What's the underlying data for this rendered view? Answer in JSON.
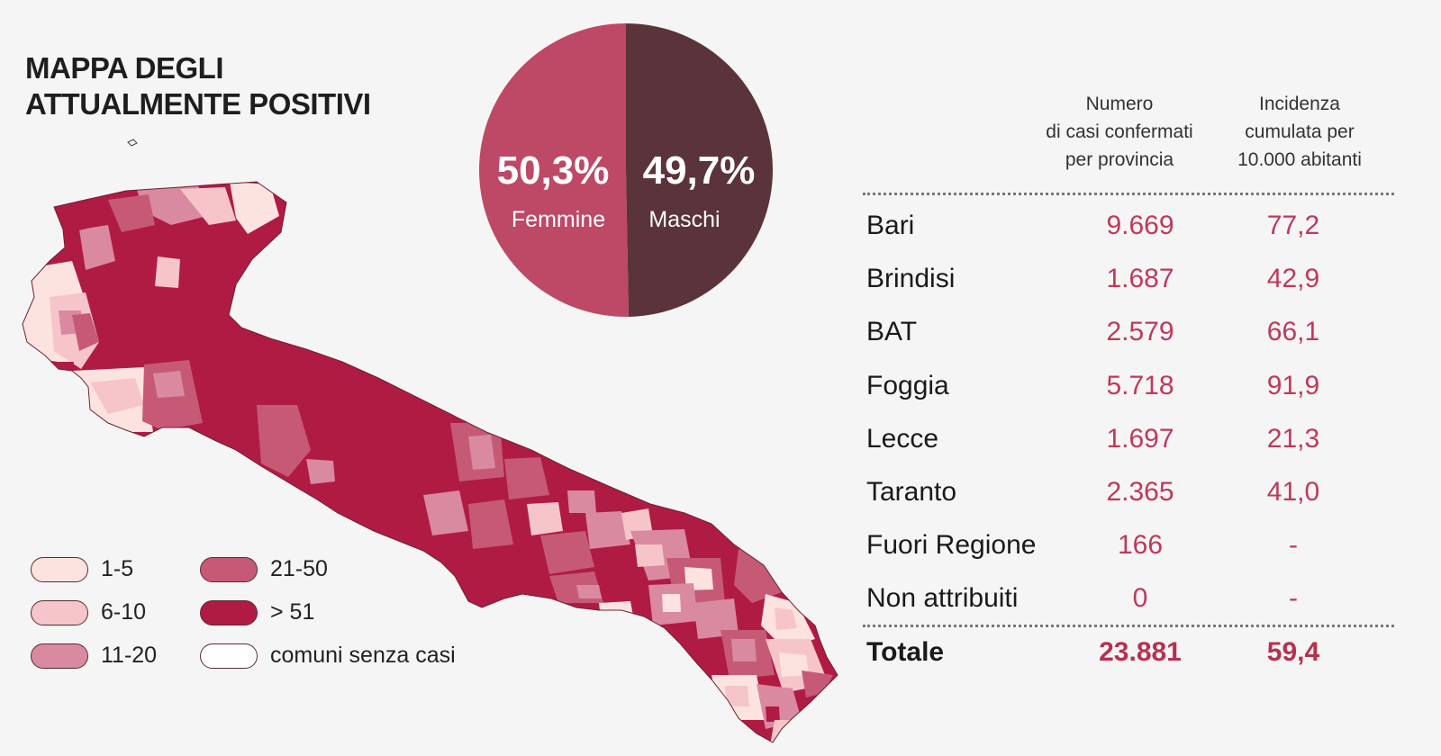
{
  "title": {
    "line1": "MAPPA DEGLI",
    "line2": "ATTUALMENTE POSITIVI"
  },
  "colors": {
    "c1_5": "#fde3df",
    "c6_10": "#f5c5c9",
    "c11_20": "#d98aa0",
    "c21_50": "#c65a76",
    "c51": "#b01b44",
    "none": "#ffffff",
    "female": "#bd4966",
    "male": "#5b333a",
    "value": "#c0395a"
  },
  "legend": [
    {
      "label": "1-5",
      "color": "#fde3df"
    },
    {
      "label": "6-10",
      "color": "#f5c5c9"
    },
    {
      "label": "11-20",
      "color": "#d98aa0"
    },
    {
      "label": "21-50",
      "color": "#c65a76"
    },
    {
      "label": "> 51",
      "color": "#b01b44"
    },
    {
      "label": "comuni senza casi",
      "color": "#ffffff"
    }
  ],
  "gender": {
    "female": {
      "pct": "50,3%",
      "label": "Femmine",
      "value": 50.3
    },
    "male": {
      "pct": "49,7%",
      "label": "Maschi",
      "value": 49.7
    }
  },
  "table": {
    "col_cases": "Numero\ndi casi confermati\nper provincia",
    "col_incidence": "Incidenza\ncumulata per\n10.000 abitanti",
    "rows": [
      {
        "name": "Bari",
        "cases": "9.669",
        "incidence": "77,2"
      },
      {
        "name": "Brindisi",
        "cases": "1.687",
        "incidence": "42,9"
      },
      {
        "name": "BAT",
        "cases": "2.579",
        "incidence": "66,1"
      },
      {
        "name": "Foggia",
        "cases": "5.718",
        "incidence": "91,9"
      },
      {
        "name": "Lecce",
        "cases": "1.697",
        "incidence": "21,3"
      },
      {
        "name": "Taranto",
        "cases": "2.365",
        "incidence": "41,0"
      },
      {
        "name": "Fuori Regione",
        "cases": "166",
        "incidence": "-"
      },
      {
        "name": "Non attribuiti",
        "cases": "0",
        "incidence": "-"
      }
    ],
    "total": {
      "name": "Totale",
      "cases": "23.881",
      "incidence": "59,4"
    }
  }
}
